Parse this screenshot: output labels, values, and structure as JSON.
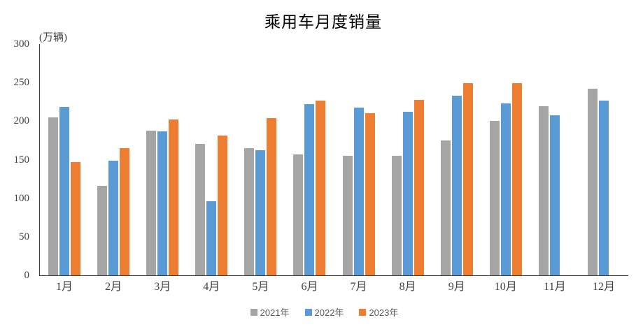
{
  "title": "乘用车月度销量",
  "y_axis_unit_label": "(万辆)",
  "legend": [
    {
      "label": "2021年",
      "color": "#A5A5A5"
    },
    {
      "label": "2022年",
      "color": "#5B9BD5"
    },
    {
      "label": "2023年",
      "color": "#ED7D31"
    }
  ],
  "chart_data": {
    "type": "bar",
    "title": "乘用车月度销量",
    "ylabel": "(万辆)",
    "categories": [
      "1月",
      "2月",
      "3月",
      "4月",
      "5月",
      "6月",
      "7月",
      "8月",
      "9月",
      "10月",
      "11月",
      "12月"
    ],
    "series": [
      {
        "name": "2021年",
        "color": "#A5A5A5",
        "values": [
          204.5,
          115.6,
          187.5,
          170.4,
          164.6,
          156.9,
          155.0,
          155.2,
          175.3,
          200.4,
          219.2,
          242.2
        ]
      },
      {
        "name": "2022年",
        "color": "#5B9BD5",
        "values": [
          218.6,
          148.7,
          186.4,
          96.5,
          162.3,
          222.2,
          217.4,
          212.5,
          233.2,
          223.1,
          207.5,
          226.5
        ]
      },
      {
        "name": "2023年",
        "color": "#ED7D31",
        "values": [
          146.9,
          165.3,
          201.7,
          181.1,
          204.2,
          226.8,
          210.0,
          227.5,
          248.8,
          249.0,
          null,
          null
        ]
      }
    ],
    "ylim": [
      0,
      300
    ],
    "ytick_step": 50,
    "grid": false,
    "legend_position": "bottom",
    "axis_color": "#3f3f3f",
    "tick_label_color": "#404040"
  }
}
